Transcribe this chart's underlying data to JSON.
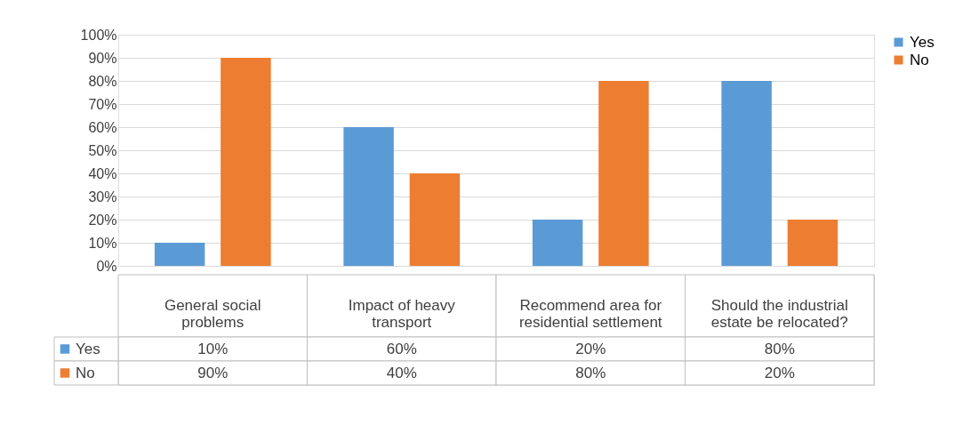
{
  "chart_data": {
    "type": "bar",
    "categories": [
      "General social problems",
      "Impact of heavy transport",
      "Recommend area for residential settlement",
      "Should the industrial estate be relocated?"
    ],
    "series": [
      {
        "name": "Yes",
        "color": "#5b9bd5",
        "values": [
          10,
          60,
          20,
          80
        ],
        "value_labels": [
          "10%",
          "60%",
          "20%",
          "80%"
        ]
      },
      {
        "name": "No",
        "color": "#ed7d31",
        "values": [
          90,
          40,
          80,
          20
        ],
        "value_labels": [
          "90%",
          "40%",
          "80%",
          "20%"
        ]
      }
    ],
    "ylim": [
      0,
      100
    ],
    "yticks": [
      {
        "value": 0,
        "label": "0%"
      },
      {
        "value": 10,
        "label": "10%"
      },
      {
        "value": 20,
        "label": "20%"
      },
      {
        "value": 30,
        "label": "30%"
      },
      {
        "value": 40,
        "label": "40%"
      },
      {
        "value": 50,
        "label": "50%"
      },
      {
        "value": 60,
        "label": "60%"
      },
      {
        "value": 70,
        "label": "70%"
      },
      {
        "value": 80,
        "label": "80%"
      },
      {
        "value": 90,
        "label": "90%"
      },
      {
        "value": 100,
        "label": "100%"
      }
    ],
    "grid": "y",
    "legend": "right"
  }
}
